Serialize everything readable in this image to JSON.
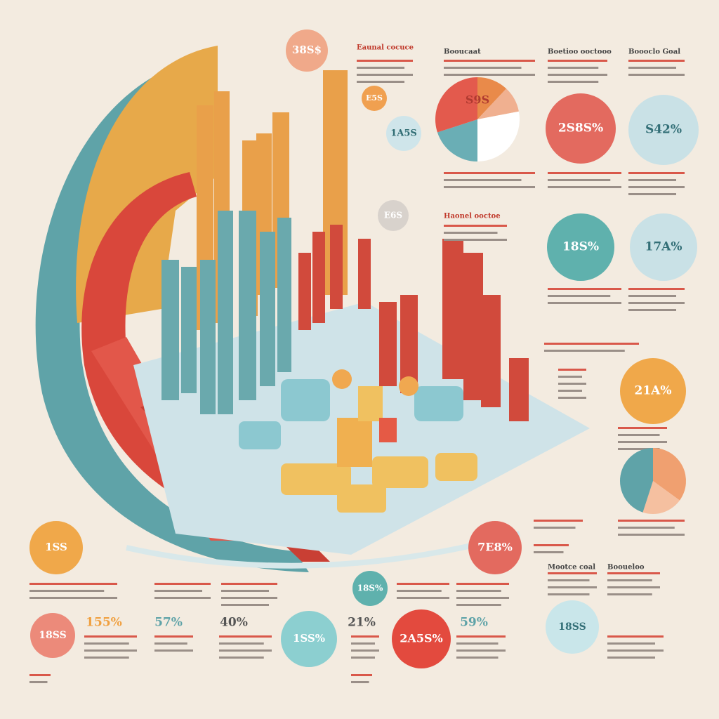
{
  "badges": [
    "38S$",
    "E5S",
    "1A5S",
    "E6S",
    "S9S",
    "2S8S%",
    "S42%",
    "18S%",
    "17A%",
    "21A%",
    "7E8%",
    "1SS",
    "18S%",
    "18SS",
    "155%",
    "57%",
    "40%",
    "1SS%",
    "21%",
    "2A5S%",
    "59%",
    "18SS"
  ],
  "headings": [
    "Eaunal cocuce",
    "Booucaat",
    "Boetioo ooctooo",
    "Boooclo Goal",
    "Haonel ooctoe",
    "Mootce coal",
    "Booueloo"
  ]
}
